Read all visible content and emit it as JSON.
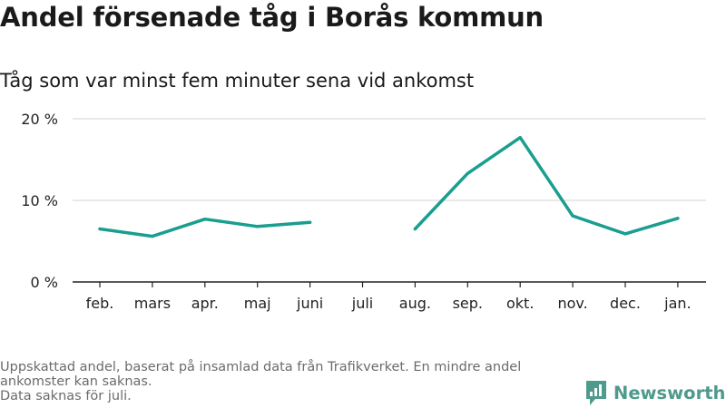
{
  "header": {
    "title": "Andel försenade tåg i Borås kommun",
    "subtitle": "Tåg som var minst fem minuter sena vid ankomst"
  },
  "footer": {
    "lines": [
      "Uppskattad andel, baserat på insamlad data från Trafikverket. En mindre andel",
      "ankomster kan saknas.",
      "Data saknas för juli."
    ]
  },
  "brand": {
    "name": "Newsworthy",
    "icon": "newsworthy-logo-icon"
  },
  "colors": {
    "line": "#1a9e8f",
    "grid": "#dcdcdc",
    "axis": "#222222",
    "footer_text": "#6b6b6b",
    "brand": "#4e9a8c"
  },
  "chart_data": {
    "type": "line",
    "title": "Andel försenade tåg i Borås kommun",
    "subtitle": "Tåg som var minst fem minuter sena vid ankomst",
    "xlabel": "",
    "ylabel": "",
    "categories": [
      "feb.",
      "mars",
      "apr.",
      "maj",
      "juni",
      "juli",
      "aug.",
      "sep.",
      "okt.",
      "nov.",
      "dec.",
      "jan."
    ],
    "series": [
      {
        "values": [
          6.5,
          5.6,
          7.7,
          6.8,
          7.3,
          null,
          6.5,
          13.3,
          17.7,
          8.1,
          5.9,
          7.8
        ]
      }
    ],
    "ylim": [
      0,
      20
    ],
    "yticks": [
      0,
      10,
      20
    ],
    "ytick_labels": [
      "0 %",
      "10 %",
      "20 %"
    ],
    "grid": true,
    "legend": "none"
  }
}
